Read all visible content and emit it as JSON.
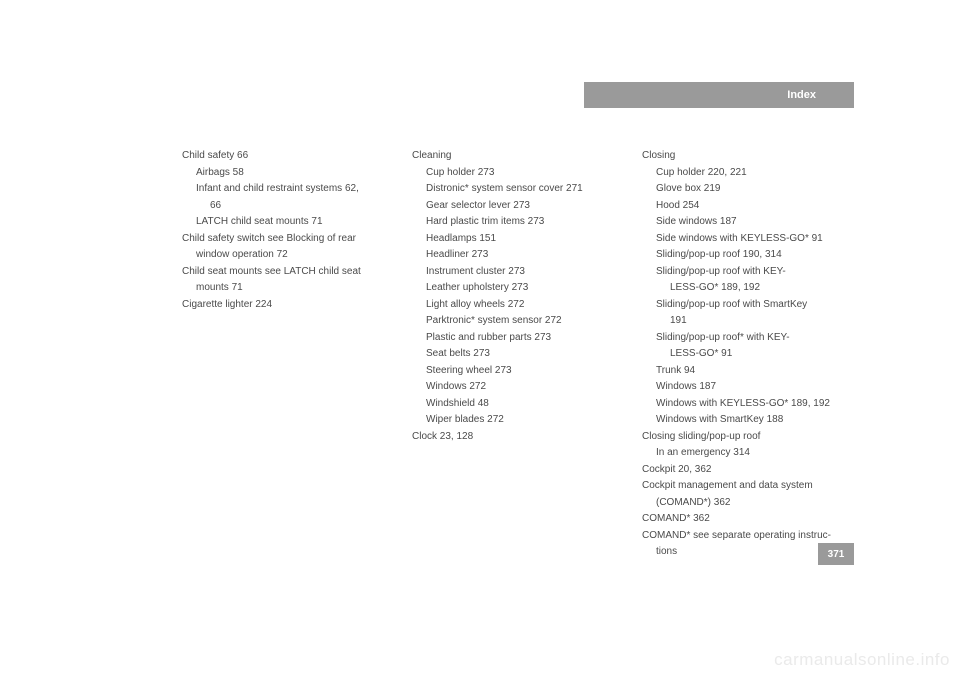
{
  "header": {
    "title": "Index"
  },
  "page": {
    "number": "371"
  },
  "watermark": "carmanualsonline.info",
  "col1": {
    "l0": "Child safety 66",
    "l1": "Airbags 58",
    "l2": "Infant and child restraint systems 62,",
    "l3": "66",
    "l4": "LATCH child seat mounts 71",
    "l5": "Child safety switch see Blocking of rear",
    "l6": "window operation 72",
    "l7": "Child seat mounts see LATCH child seat",
    "l8": "mounts 71",
    "l9": "Cigarette lighter 224"
  },
  "col2": {
    "l0": "Cleaning",
    "l1": "Cup holder 273",
    "l2": "Distronic* system sensor cover 271",
    "l3": "Gear selector lever 273",
    "l4": "Hard plastic trim items 273",
    "l5": "Headlamps 151",
    "l6": "Headliner 273",
    "l7": "Instrument cluster 273",
    "l8": "Leather upholstery 273",
    "l9": "Light alloy wheels 272",
    "l10": "Parktronic* system sensor 272",
    "l11": "Plastic and rubber parts 273",
    "l12": "Seat belts 273",
    "l13": "Steering wheel 273",
    "l14": "Windows 272",
    "l15": "Windshield 48",
    "l16": "Wiper blades 272",
    "l17": "Clock 23, 128"
  },
  "col3": {
    "l0": "Closing",
    "l1": "Cup holder 220, 221",
    "l2": "Glove box 219",
    "l3": "Hood 254",
    "l4": "Side windows 187",
    "l5": "Side windows with KEYLESS-GO* 91",
    "l6": "Sliding/pop-up roof 190, 314",
    "l7": "Sliding/pop-up roof with KEY-",
    "l8": "LESS-GO* 189, 192",
    "l9": "Sliding/pop-up roof with SmartKey",
    "l10": "191",
    "l11": "Sliding/pop-up roof* with KEY-",
    "l12": "LESS-GO* 91",
    "l13": "Trunk 94",
    "l14": "Windows 187",
    "l15": "Windows with KEYLESS-GO* 189, 192",
    "l16": "Windows with SmartKey 188",
    "l17": "Closing sliding/pop-up roof",
    "l18": "In an emergency 314",
    "l19": "Cockpit 20, 362",
    "l20": "Cockpit management and data system",
    "l21": "(COMAND*) 362",
    "l22": "COMAND* 362",
    "l23": "COMAND* see separate operating instruc-",
    "l24": "tions"
  }
}
